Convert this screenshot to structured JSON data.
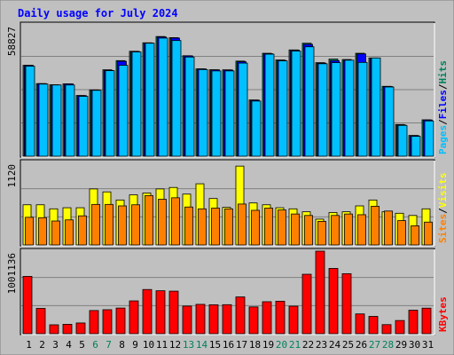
{
  "chart_data": {
    "type": "bar",
    "title": "Daily usage for July 2024",
    "categories": [
      "1",
      "2",
      "3",
      "4",
      "5",
      "6",
      "7",
      "8",
      "9",
      "10",
      "11",
      "12",
      "13",
      "14",
      "15",
      "16",
      "17",
      "18",
      "19",
      "20",
      "21",
      "22",
      "23",
      "24",
      "25",
      "26",
      "27",
      "28",
      "29",
      "30",
      "31"
    ],
    "weekend_days": [
      "6",
      "7",
      "13",
      "14",
      "20",
      "21",
      "27",
      "28"
    ],
    "colors": {
      "hits": "#00805c",
      "files": "#0000ff",
      "pages": "#00c0ff",
      "visits": "#ffff00",
      "sites": "#ff8000",
      "kbytes": "#ff0000",
      "weekday_label": "#000000",
      "weekend_label": "#00805c",
      "title": "#0000ff"
    },
    "panels": [
      {
        "name": "hits-files-pages",
        "max_label": "58827",
        "ylim": [
          0,
          58827
        ],
        "side_label": [
          "Pages",
          "/",
          "Files",
          "/",
          "Hits"
        ],
        "series": [
          {
            "name": "Hits",
            "values": [
              40700,
              32500,
              32000,
              32400,
              27200,
              29700,
              38700,
              42800,
              47000,
              50800,
              53600,
              53100,
              45000,
              39100,
              38700,
              38700,
              42600,
              25200,
              46100,
              43100,
              47600,
              50600,
              41900,
              43500,
              43300,
              46100,
              44000,
              31300,
              14200,
              9300,
              16300
            ]
          },
          {
            "name": "Files",
            "values": [
              40700,
              32500,
              31900,
              32400,
              27100,
              29600,
              38400,
              42500,
              46900,
              50700,
              53400,
              52900,
              44900,
              39100,
              38700,
              38600,
              42300,
              25100,
              45900,
              42900,
              47500,
              50100,
              41700,
              42800,
              42900,
              45800,
              43800,
              31200,
              14000,
              9200,
              16200
            ]
          },
          {
            "name": "Pages",
            "values": [
              40300,
              32300,
              31900,
              31900,
              26800,
              29500,
              38300,
              40700,
              46700,
              50600,
              52900,
              51800,
              44400,
              38800,
              38200,
              38200,
              41700,
              24700,
              45700,
              42700,
              47100,
              49000,
              41400,
              41900,
              43000,
              42000,
              44000,
              31000,
              13800,
              8900,
              15800
            ]
          }
        ]
      },
      {
        "name": "visits-sites",
        "max_label": "1120",
        "ylim": [
          0,
          1120
        ],
        "side_label": [
          "Sites",
          "/",
          "Visits"
        ],
        "series": [
          {
            "name": "Visits",
            "values": [
              545,
              545,
              490,
              505,
              505,
              760,
              720,
              610,
              680,
              705,
              760,
              780,
              690,
              830,
              630,
              510,
              1070,
              570,
              545,
              505,
              490,
              450,
              350,
              440,
              450,
              530,
              610,
              450,
              430,
              400,
              490
            ]
          },
          {
            "name": "Sites",
            "values": [
              375,
              370,
              325,
              340,
              395,
              550,
              550,
              530,
              545,
              670,
              620,
              640,
              515,
              490,
              500,
              490,
              555,
              470,
              500,
              475,
              420,
              400,
              320,
              400,
              420,
              410,
              525,
              460,
              330,
              260,
              310
            ]
          }
        ]
      },
      {
        "name": "kbytes",
        "max_label": "1001136",
        "ylim": [
          0,
          1001136
        ],
        "side_label": [
          "KBytes"
        ],
        "series": [
          {
            "name": "KBytes",
            "values": [
              695000,
              307000,
              108000,
              114000,
              130000,
              281000,
              291000,
              311000,
              398000,
              536000,
              521000,
              516000,
              335000,
              356000,
              351000,
              352000,
              446000,
              325000,
              388000,
              394000,
              334000,
              721000,
              1001136,
              792000,
              728000,
              240000,
              210000,
              110000,
              160000,
              285000,
              310000
            ]
          }
        ]
      }
    ]
  }
}
